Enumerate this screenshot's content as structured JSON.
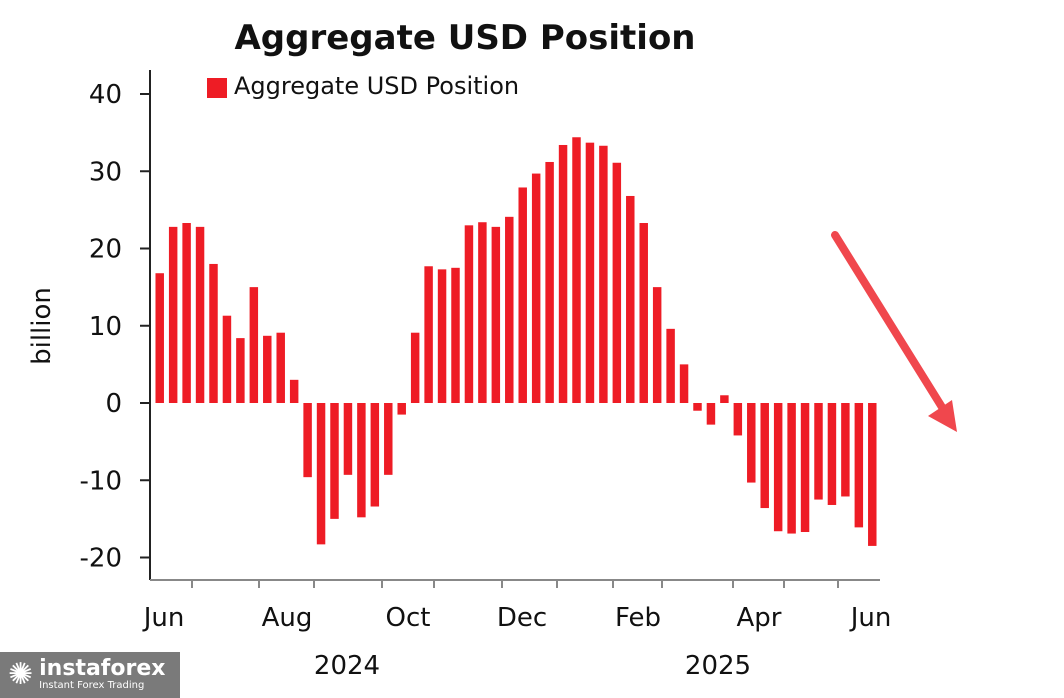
{
  "chart_data": {
    "type": "bar",
    "title": "Aggregate USD Position",
    "ylabel": "billion",
    "xlabel": "",
    "ylim": [
      -22,
      43
    ],
    "yticks": [
      40,
      30,
      20,
      10,
      0,
      -10,
      -20
    ],
    "ytick_labels": [
      "40",
      "30",
      "20",
      "10",
      "0",
      "-10",
      "-20"
    ],
    "month_labels": [
      "Jun",
      "Aug",
      "Oct",
      "Dec",
      "Feb",
      "Apr",
      "Jun"
    ],
    "year_labels": [
      "2024",
      "2025"
    ],
    "legend": {
      "label": "Aggregate USD Position",
      "position": "top-left"
    },
    "color": "#ee1c25",
    "series": [
      {
        "name": "Aggregate USD Position",
        "values": [
          16.8,
          22.8,
          23.3,
          22.8,
          18.0,
          11.3,
          8.4,
          15.0,
          8.7,
          9.1,
          3.0,
          -9.6,
          -18.3,
          -15.0,
          -9.3,
          -14.8,
          -13.4,
          -9.3,
          -1.5,
          9.1,
          17.7,
          17.3,
          17.5,
          23.0,
          23.4,
          22.8,
          24.1,
          27.9,
          29.7,
          31.2,
          33.4,
          34.4,
          33.7,
          33.3,
          31.1,
          26.8,
          23.3,
          15.0,
          9.6,
          5.0,
          -1.0,
          -2.8,
          1.0,
          -4.2,
          -10.3,
          -13.6,
          -16.6,
          -16.9,
          -16.7,
          -12.5,
          -13.2,
          -12.1,
          -16.1,
          -18.5
        ]
      }
    ],
    "annotation": "downward-trend-arrow",
    "grid": false
  },
  "watermark": {
    "brand": "instaforex",
    "tagline": "Instant Forex Trading"
  }
}
